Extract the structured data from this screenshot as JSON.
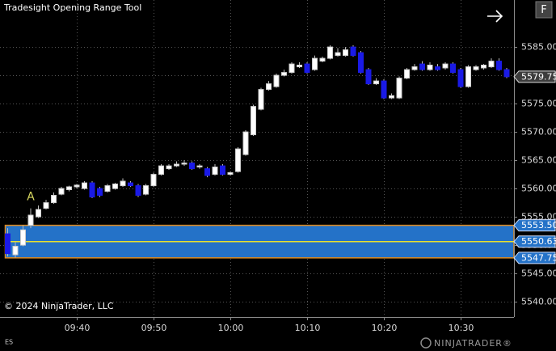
{
  "chart_data": {
    "type": "candlestick",
    "title": "Tradesight Opening Range Tool",
    "copyright": "© 2024 NinjaTrader, LLC",
    "instrument": "ES",
    "logo": "NINJATRADER®",
    "button": "F",
    "up_color": "#ffffff",
    "down_color": "#1a1ae6",
    "x": [
      "09:31",
      "09:32",
      "09:33",
      "09:34",
      "09:35",
      "09:36",
      "09:37",
      "09:38",
      "09:39",
      "09:40",
      "09:41",
      "09:42",
      "09:43",
      "09:44",
      "09:45",
      "09:46",
      "09:47",
      "09:48",
      "09:49",
      "09:50",
      "09:51",
      "09:52",
      "09:53",
      "09:54",
      "09:55",
      "09:56",
      "09:57",
      "09:58",
      "09:59",
      "10:00",
      "10:01",
      "10:02",
      "10:03",
      "10:04",
      "10:05",
      "10:06",
      "10:07",
      "10:08",
      "10:09",
      "10:10",
      "10:11",
      "10:12",
      "10:13",
      "10:14",
      "10:15",
      "10:16",
      "10:17",
      "10:18",
      "10:19",
      "10:20",
      "10:21",
      "10:22",
      "10:23",
      "10:24",
      "10:25",
      "10:26",
      "10:27",
      "10:28",
      "10:29",
      "10:30",
      "10:31",
      "10:32",
      "10:33",
      "10:34",
      "10:35",
      "10:36"
    ],
    "open": [
      5552,
      5548.3,
      5550,
      5553.5,
      5555,
      5556.5,
      5557.5,
      5559,
      5559.8,
      5560.3,
      5560,
      5561,
      5560,
      5559.5,
      5560,
      5560.5,
      5561,
      5560.5,
      5559,
      5560.5,
      5562.5,
      5563.5,
      5564,
      5564.3,
      5564.5,
      5563.8,
      5563.5,
      5562.5,
      5564,
      5562.5,
      5563,
      5566,
      5569.5,
      5574,
      5577.5,
      5578,
      5580,
      5580.5,
      5581.5,
      5582,
      5581,
      5582.5,
      5583,
      5583.5,
      5583.5,
      5585,
      5584,
      5581,
      5578.5,
      5579,
      5576,
      5576,
      5579.5,
      5581,
      5582,
      5581,
      5581.5,
      5581.3,
      5582,
      5581,
      5578,
      5581,
      5581.3,
      5581.5,
      5582.5,
      5581
    ],
    "high": [
      5553,
      5550.5,
      5553.5,
      5556.5,
      5557,
      5558,
      5559.3,
      5560.3,
      5560.5,
      5560.8,
      5561.3,
      5561.3,
      5560.3,
      5560.8,
      5561,
      5561.8,
      5561.3,
      5560.8,
      5560.8,
      5562.8,
      5564.3,
      5564.3,
      5564.8,
      5565,
      5564.8,
      5564.3,
      5563.8,
      5564.3,
      5564.3,
      5563,
      5567.3,
      5570.3,
      5574.8,
      5577.8,
      5579,
      5580.3,
      5581,
      5582.3,
      5582.3,
      5582.3,
      5583.5,
      5583.3,
      5585.3,
      5584.8,
      5585,
      5585.3,
      5584.3,
      5581.3,
      5579.5,
      5579.3,
      5576.8,
      5579.8,
      5581.3,
      5582,
      5582.5,
      5582.3,
      5582,
      5582.3,
      5582.3,
      5581.3,
      5581.8,
      5581.8,
      5582,
      5583,
      5583,
      5581.3
    ],
    "low": [
      5548,
      5547.8,
      5549.8,
      5553,
      5554.8,
      5556.3,
      5557.3,
      5558.8,
      5559.5,
      5560,
      5559.8,
      5558.3,
      5558.5,
      5559.3,
      5559.8,
      5560.3,
      5560.3,
      5558.5,
      5558.8,
      5560.3,
      5562.3,
      5563.3,
      5563.8,
      5564,
      5563.3,
      5563.5,
      5562,
      5562.3,
      5562.3,
      5562.3,
      5562.8,
      5565.8,
      5569.3,
      5573.8,
      5577.3,
      5577.8,
      5579.8,
      5580.3,
      5581.3,
      5580.3,
      5580.8,
      5582.3,
      5582.8,
      5583.3,
      5583.3,
      5583.3,
      5580.3,
      5578.3,
      5578.3,
      5575.8,
      5575.8,
      5575.8,
      5579.3,
      5580.8,
      5580.8,
      5580.8,
      5580.8,
      5581,
      5580.3,
      5577.8,
      5577.8,
      5580.8,
      5581,
      5581.3,
      5580.8,
      5579.5
    ],
    "close": [
      5548.5,
      5549.8,
      5552.7,
      5555.3,
      5556.3,
      5557.5,
      5558.8,
      5560,
      5560.3,
      5560.6,
      5561,
      5558.5,
      5558.8,
      5560.5,
      5560.8,
      5561.3,
      5560.5,
      5558.8,
      5560.5,
      5562.5,
      5564,
      5564,
      5564.3,
      5564.5,
      5563.5,
      5564,
      5562.3,
      5563.8,
      5562.5,
      5562.8,
      5567,
      5570,
      5574.5,
      5577.5,
      5578.5,
      5580,
      5580.5,
      5582,
      5581.8,
      5580.5,
      5583,
      5583,
      5585,
      5584,
      5584.5,
      5583.5,
      5580.5,
      5578.5,
      5579,
      5576,
      5576.4,
      5579.5,
      5581,
      5581.5,
      5581,
      5581.8,
      5581,
      5582,
      5580.5,
      5578,
      5581.5,
      5581.5,
      5581.8,
      5582.5,
      5581,
      5579.75
    ],
    "xticks": [
      "09:40",
      "09:50",
      "10:00",
      "10:10",
      "10:20",
      "10:30"
    ],
    "ylim": [
      5537.3,
      5593.3
    ],
    "yticks": [
      {
        "value": 5540,
        "label": "5540.00"
      },
      {
        "value": 5545,
        "label": "5545.00"
      },
      {
        "value": 5550,
        "label": "5550.00"
      },
      {
        "value": 5555,
        "label": "5555.00"
      },
      {
        "value": 5560,
        "label": "5560.00"
      },
      {
        "value": 5565,
        "label": "5565.00"
      },
      {
        "value": 5570,
        "label": "5570.00"
      },
      {
        "value": 5575,
        "label": "5575.00"
      },
      {
        "value": 5580,
        "label": "5580.00"
      },
      {
        "value": 5585,
        "label": "5585.00"
      }
    ],
    "grid": true,
    "opening_range": {
      "start": "09:31",
      "high": {
        "value": 5553.5,
        "label": "5553.50"
      },
      "mid": {
        "value": 5550.63,
        "label": "5550.63"
      },
      "low": {
        "value": 5547.75,
        "label": "5547.75"
      },
      "color": "#2472c8",
      "border_color": "#e08a1e",
      "mid_color": "#e8e030"
    },
    "last_price": {
      "value": 5579.75,
      "label": "5579.75",
      "color": "#3c3c3c"
    },
    "annotations": [
      {
        "text": "A",
        "x": "09:34",
        "color": "#d8d860"
      }
    ]
  }
}
